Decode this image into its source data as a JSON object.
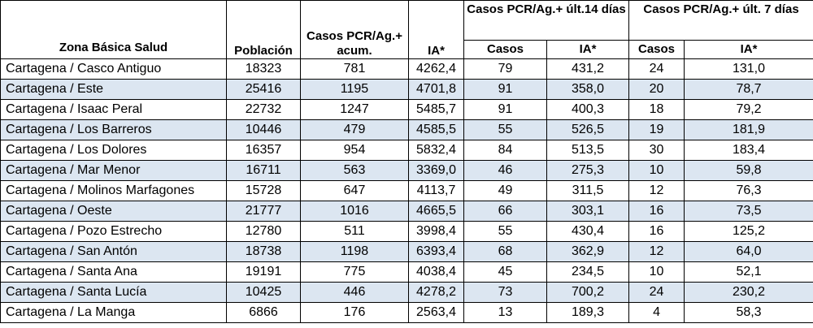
{
  "headers": {
    "zona": "Zona Básica Salud",
    "poblacion": "Población",
    "casos_acum": "Casos PCR/Ag.+ acum.",
    "ia": "IA*",
    "grupo14": "Casos PCR/Ag.+ últ.14 días",
    "grupo7": "Casos PCR/Ag.+ últ. 7 días",
    "casos14": "Casos",
    "ia14": "IA*",
    "casos7": "Casos",
    "ia7": "IA*"
  },
  "rows": [
    [
      "Cartagena / Casco Antiguo",
      "18323",
      "781",
      "4262,4",
      "79",
      "431,2",
      "24",
      "131,0"
    ],
    [
      "Cartagena / Este",
      "25416",
      "1195",
      "4701,8",
      "91",
      "358,0",
      "20",
      "78,7"
    ],
    [
      "Cartagena / Isaac Peral",
      "22732",
      "1247",
      "5485,7",
      "91",
      "400,3",
      "18",
      "79,2"
    ],
    [
      "Cartagena / Los Barreros",
      "10446",
      "479",
      "4585,5",
      "55",
      "526,5",
      "19",
      "181,9"
    ],
    [
      "Cartagena / Los Dolores",
      "16357",
      "954",
      "5832,4",
      "84",
      "513,5",
      "30",
      "183,4"
    ],
    [
      "Cartagena / Mar Menor",
      "16711",
      "563",
      "3369,0",
      "46",
      "275,3",
      "10",
      "59,8"
    ],
    [
      "Cartagena / Molinos Marfagones",
      "15728",
      "647",
      "4113,7",
      "49",
      "311,5",
      "12",
      "76,3"
    ],
    [
      "Cartagena / Oeste",
      "21777",
      "1016",
      "4665,5",
      "66",
      "303,1",
      "16",
      "73,5"
    ],
    [
      "Cartagena / Pozo Estrecho",
      "12780",
      "511",
      "3998,4",
      "55",
      "430,4",
      "16",
      "125,2"
    ],
    [
      "Cartagena / San Antón",
      "18738",
      "1198",
      "6393,4",
      "68",
      "362,9",
      "12",
      "64,0"
    ],
    [
      "Cartagena / Santa Ana",
      "19191",
      "775",
      "4038,4",
      "45",
      "234,5",
      "10",
      "52,1"
    ],
    [
      "Cartagena / Santa Lucía",
      "10425",
      "446",
      "4278,2",
      "73",
      "700,2",
      "24",
      "230,2"
    ],
    [
      "Cartagena / La Manga",
      "6866",
      "176",
      "2563,4",
      "13",
      "189,3",
      "4",
      "58,3"
    ]
  ],
  "colors": {
    "stripe": "#dce6f1",
    "border": "#000000"
  }
}
